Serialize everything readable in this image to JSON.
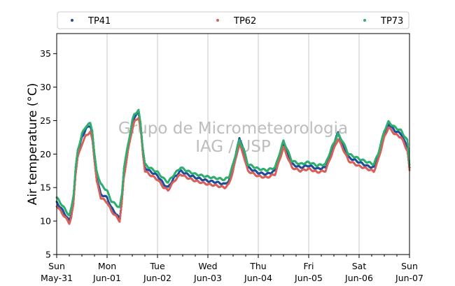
{
  "chart_data": {
    "type": "scatter",
    "ylabel": "Air temperature (°C)",
    "ylim": [
      5,
      38
    ],
    "yticks": [
      5,
      10,
      15,
      20,
      25,
      30,
      35
    ],
    "xlim": [
      "2020-05-31 00:00",
      "2020-06-07 00:00"
    ],
    "xticks": [
      {
        "date": "2020-05-31",
        "day": "Sun",
        "label": "May-31"
      },
      {
        "date": "2020-06-01",
        "day": "Mon",
        "label": "Jun-01"
      },
      {
        "date": "2020-06-02",
        "day": "Tue",
        "label": "Jun-02"
      },
      {
        "date": "2020-06-03",
        "day": "Wed",
        "label": "Jun-03"
      },
      {
        "date": "2020-06-04",
        "day": "Thu",
        "label": "Jun-04"
      },
      {
        "date": "2020-06-05",
        "day": "Fri",
        "label": "Jun-05"
      },
      {
        "date": "2020-06-06",
        "day": "Sat",
        "label": "Jun-06"
      },
      {
        "date": "2020-06-07",
        "day": "Sun",
        "label": "Jun-07"
      }
    ],
    "grid": "vertical at day ticks",
    "legend_position": "top, above plot",
    "watermark": [
      "Grupo de Micrometeorologia",
      "IAG / USP"
    ],
    "series": [
      {
        "name": "TP41",
        "color": "#1f4e9c",
        "points": [
          [
            "2020-05-31 00:00",
            12.8
          ],
          [
            "2020-05-31 03:00",
            11.5
          ],
          [
            "2020-05-31 06:00",
            10.0
          ],
          [
            "2020-05-31 07:00",
            11.0
          ],
          [
            "2020-05-31 08:00",
            13.0
          ],
          [
            "2020-05-31 09:00",
            17.5
          ],
          [
            "2020-05-31 10:00",
            20.0
          ],
          [
            "2020-05-31 12:00",
            22.5
          ],
          [
            "2020-05-31 14:00",
            23.8
          ],
          [
            "2020-05-31 16:00",
            24.3
          ],
          [
            "2020-05-31 17:00",
            23.0
          ],
          [
            "2020-05-31 18:00",
            19.5
          ],
          [
            "2020-05-31 19:00",
            16.5
          ],
          [
            "2020-05-31 21:00",
            14.0
          ],
          [
            "2020-06-01 00:00",
            13.5
          ],
          [
            "2020-06-01 02:00",
            12.0
          ],
          [
            "2020-06-01 04:00",
            11.2
          ],
          [
            "2020-06-01 06:00",
            10.3
          ],
          [
            "2020-06-01 07:00",
            13.0
          ],
          [
            "2020-06-01 08:00",
            17.0
          ],
          [
            "2020-06-01 10:00",
            21.0
          ],
          [
            "2020-06-01 12:00",
            24.5
          ],
          [
            "2020-06-01 13:00",
            25.5
          ],
          [
            "2020-06-01 15:00",
            26.2
          ],
          [
            "2020-06-01 16:00",
            24.0
          ],
          [
            "2020-06-01 17:00",
            20.5
          ],
          [
            "2020-06-01 18:00",
            18.0
          ],
          [
            "2020-06-01 20:00",
            17.5
          ],
          [
            "2020-06-02 00:00",
            16.8
          ],
          [
            "2020-06-02 03:00",
            15.5
          ],
          [
            "2020-06-02 05:00",
            15.0
          ],
          [
            "2020-06-02 08:00",
            16.5
          ],
          [
            "2020-06-02 11:00",
            17.5
          ],
          [
            "2020-06-02 14:00",
            17.0
          ],
          [
            "2020-06-02 18:00",
            16.5
          ],
          [
            "2020-06-03 00:00",
            16.0
          ],
          [
            "2020-06-03 04:00",
            15.8
          ],
          [
            "2020-06-03 08:00",
            15.5
          ],
          [
            "2020-06-03 10:00",
            16.0
          ],
          [
            "2020-06-03 12:00",
            18.0
          ],
          [
            "2020-06-03 14:00",
            21.0
          ],
          [
            "2020-06-03 15:00",
            22.5
          ],
          [
            "2020-06-03 17:00",
            20.5
          ],
          [
            "2020-06-03 19:00",
            18.0
          ],
          [
            "2020-06-04 00:00",
            17.2
          ],
          [
            "2020-06-04 04:00",
            17.0
          ],
          [
            "2020-06-04 08:00",
            17.5
          ],
          [
            "2020-06-04 10:00",
            19.5
          ],
          [
            "2020-06-04 12:00",
            21.5
          ],
          [
            "2020-06-04 14:00",
            20.0
          ],
          [
            "2020-06-04 16:00",
            18.5
          ],
          [
            "2020-06-04 20:00",
            18.0
          ],
          [
            "2020-06-05 00:00",
            18.3
          ],
          [
            "2020-06-05 04:00",
            17.8
          ],
          [
            "2020-06-05 08:00",
            18.0
          ],
          [
            "2020-06-05 11:00",
            20.5
          ],
          [
            "2020-06-05 14:00",
            23.3
          ],
          [
            "2020-06-05 16:00",
            21.5
          ],
          [
            "2020-06-05 19:00",
            19.5
          ],
          [
            "2020-06-06 00:00",
            18.8
          ],
          [
            "2020-06-06 04:00",
            18.2
          ],
          [
            "2020-06-06 07:00",
            18.0
          ],
          [
            "2020-06-06 09:00",
            19.5
          ],
          [
            "2020-06-06 12:00",
            23.0
          ],
          [
            "2020-06-06 14:00",
            24.5
          ],
          [
            "2020-06-06 17:00",
            23.5
          ],
          [
            "2020-06-06 20:00",
            23.0
          ],
          [
            "2020-06-06 23:00",
            21.0
          ],
          [
            "2020-06-07 00:00",
            18.0
          ]
        ]
      },
      {
        "name": "TP62",
        "color": "#d9605a",
        "points": [
          [
            "2020-05-31 00:00",
            12.3
          ],
          [
            "2020-05-31 03:00",
            11.0
          ],
          [
            "2020-05-31 06:00",
            9.7
          ],
          [
            "2020-05-31 07:00",
            10.6
          ],
          [
            "2020-05-31 08:00",
            12.5
          ],
          [
            "2020-05-31 09:00",
            17.0
          ],
          [
            "2020-05-31 10:00",
            19.5
          ],
          [
            "2020-05-31 12:00",
            21.5
          ],
          [
            "2020-05-31 14:00",
            22.8
          ],
          [
            "2020-05-31 16:00",
            23.3
          ],
          [
            "2020-05-31 17:00",
            22.0
          ],
          [
            "2020-05-31 18:00",
            19.0
          ],
          [
            "2020-05-31 19:00",
            16.0
          ],
          [
            "2020-05-31 21:00",
            13.5
          ],
          [
            "2020-06-01 00:00",
            12.8
          ],
          [
            "2020-06-01 02:00",
            11.5
          ],
          [
            "2020-06-01 04:00",
            10.8
          ],
          [
            "2020-06-01 06:00",
            10.0
          ],
          [
            "2020-06-01 07:00",
            12.5
          ],
          [
            "2020-06-01 08:00",
            16.5
          ],
          [
            "2020-06-01 10:00",
            20.5
          ],
          [
            "2020-06-01 12:00",
            23.8
          ],
          [
            "2020-06-01 13:00",
            24.8
          ],
          [
            "2020-06-01 15:00",
            25.5
          ],
          [
            "2020-06-01 16:00",
            23.5
          ],
          [
            "2020-06-01 17:00",
            20.0
          ],
          [
            "2020-06-01 18:00",
            17.5
          ],
          [
            "2020-06-01 20:00",
            17.0
          ],
          [
            "2020-06-02 00:00",
            16.2
          ],
          [
            "2020-06-02 03:00",
            15.0
          ],
          [
            "2020-06-02 05:00",
            14.6
          ],
          [
            "2020-06-02 08:00",
            16.0
          ],
          [
            "2020-06-02 11:00",
            17.0
          ],
          [
            "2020-06-02 14:00",
            16.5
          ],
          [
            "2020-06-02 18:00",
            16.0
          ],
          [
            "2020-06-03 00:00",
            15.5
          ],
          [
            "2020-06-03 04:00",
            15.3
          ],
          [
            "2020-06-03 08:00",
            15.0
          ],
          [
            "2020-06-03 10:00",
            15.5
          ],
          [
            "2020-06-03 12:00",
            17.5
          ],
          [
            "2020-06-03 14:00",
            20.3
          ],
          [
            "2020-06-03 15:00",
            21.5
          ],
          [
            "2020-06-03 17:00",
            19.8
          ],
          [
            "2020-06-03 19:00",
            17.5
          ],
          [
            "2020-06-04 00:00",
            16.7
          ],
          [
            "2020-06-04 04:00",
            16.5
          ],
          [
            "2020-06-04 08:00",
            17.0
          ],
          [
            "2020-06-04 10:00",
            19.0
          ],
          [
            "2020-06-04 12:00",
            21.0
          ],
          [
            "2020-06-04 14:00",
            19.5
          ],
          [
            "2020-06-04 16:00",
            18.0
          ],
          [
            "2020-06-04 20:00",
            17.5
          ],
          [
            "2020-06-05 00:00",
            17.8
          ],
          [
            "2020-06-05 04:00",
            17.3
          ],
          [
            "2020-06-05 08:00",
            17.5
          ],
          [
            "2020-06-05 11:00",
            20.0
          ],
          [
            "2020-06-05 14:00",
            22.3
          ],
          [
            "2020-06-05 16:00",
            21.0
          ],
          [
            "2020-06-05 19:00",
            19.0
          ],
          [
            "2020-06-06 00:00",
            18.2
          ],
          [
            "2020-06-06 04:00",
            17.8
          ],
          [
            "2020-06-06 07:00",
            17.4
          ],
          [
            "2020-06-06 09:00",
            19.0
          ],
          [
            "2020-06-06 12:00",
            22.5
          ],
          [
            "2020-06-06 14:00",
            24.0
          ],
          [
            "2020-06-06 17:00",
            23.0
          ],
          [
            "2020-06-06 20:00",
            22.5
          ],
          [
            "2020-06-06 23:00",
            20.5
          ],
          [
            "2020-06-07 00:00",
            17.5
          ]
        ]
      },
      {
        "name": "TP73",
        "color": "#2eae6f",
        "points": [
          [
            "2020-05-31 00:00",
            13.5
          ],
          [
            "2020-05-31 03:00",
            12.2
          ],
          [
            "2020-05-31 06:00",
            10.8
          ],
          [
            "2020-05-31 07:00",
            12.0
          ],
          [
            "2020-05-31 08:00",
            14.0
          ],
          [
            "2020-05-31 09:00",
            18.0
          ],
          [
            "2020-05-31 10:00",
            20.5
          ],
          [
            "2020-05-31 12:00",
            23.0
          ],
          [
            "2020-05-31 14:00",
            24.2
          ],
          [
            "2020-05-31 16:00",
            24.6
          ],
          [
            "2020-05-31 17:00",
            23.5
          ],
          [
            "2020-05-31 18:00",
            20.0
          ],
          [
            "2020-05-31 19:00",
            17.5
          ],
          [
            "2020-05-31 21:00",
            15.5
          ],
          [
            "2020-06-01 00:00",
            14.5
          ],
          [
            "2020-06-01 02:00",
            13.0
          ],
          [
            "2020-06-01 04:00",
            12.5
          ],
          [
            "2020-06-01 06:00",
            12.0
          ],
          [
            "2020-06-01 07:00",
            14.0
          ],
          [
            "2020-06-01 08:00",
            18.0
          ],
          [
            "2020-06-01 10:00",
            21.5
          ],
          [
            "2020-06-01 12:00",
            25.0
          ],
          [
            "2020-06-01 13:00",
            26.0
          ],
          [
            "2020-06-01 15:00",
            26.5
          ],
          [
            "2020-06-01 16:00",
            24.5
          ],
          [
            "2020-06-01 17:00",
            21.0
          ],
          [
            "2020-06-01 18:00",
            18.5
          ],
          [
            "2020-06-01 20:00",
            18.0
          ],
          [
            "2020-06-02 00:00",
            17.3
          ],
          [
            "2020-06-02 03:00",
            16.3
          ],
          [
            "2020-06-02 05:00",
            15.8
          ],
          [
            "2020-06-02 08:00",
            17.0
          ],
          [
            "2020-06-02 11:00",
            18.0
          ],
          [
            "2020-06-02 14:00",
            17.5
          ],
          [
            "2020-06-02 18:00",
            17.0
          ],
          [
            "2020-06-03 00:00",
            16.6
          ],
          [
            "2020-06-03 04:00",
            16.4
          ],
          [
            "2020-06-03 08:00",
            16.2
          ],
          [
            "2020-06-03 10:00",
            16.6
          ],
          [
            "2020-06-03 12:00",
            18.5
          ],
          [
            "2020-06-03 14:00",
            21.0
          ],
          [
            "2020-06-03 15:00",
            22.0
          ],
          [
            "2020-06-03 17:00",
            20.8
          ],
          [
            "2020-06-03 19:00",
            18.5
          ],
          [
            "2020-06-04 00:00",
            17.8
          ],
          [
            "2020-06-04 04:00",
            17.6
          ],
          [
            "2020-06-04 08:00",
            18.0
          ],
          [
            "2020-06-04 10:00",
            20.0
          ],
          [
            "2020-06-04 12:00",
            22.0
          ],
          [
            "2020-06-04 14:00",
            20.5
          ],
          [
            "2020-06-04 16:00",
            19.0
          ],
          [
            "2020-06-04 20:00",
            18.5
          ],
          [
            "2020-06-05 00:00",
            18.8
          ],
          [
            "2020-06-05 04:00",
            18.3
          ],
          [
            "2020-06-05 08:00",
            18.5
          ],
          [
            "2020-06-05 11:00",
            21.0
          ],
          [
            "2020-06-05 14:00",
            23.0
          ],
          [
            "2020-06-05 16:00",
            22.0
          ],
          [
            "2020-06-05 19:00",
            20.0
          ],
          [
            "2020-06-06 00:00",
            19.3
          ],
          [
            "2020-06-06 04:00",
            18.8
          ],
          [
            "2020-06-06 07:00",
            18.5
          ],
          [
            "2020-06-06 09:00",
            20.0
          ],
          [
            "2020-06-06 12:00",
            23.5
          ],
          [
            "2020-06-06 14:00",
            24.8
          ],
          [
            "2020-06-06 17:00",
            24.0
          ],
          [
            "2020-06-06 20:00",
            23.5
          ],
          [
            "2020-06-06 23:00",
            22.0
          ],
          [
            "2020-06-07 00:00",
            18.5
          ]
        ]
      }
    ]
  }
}
